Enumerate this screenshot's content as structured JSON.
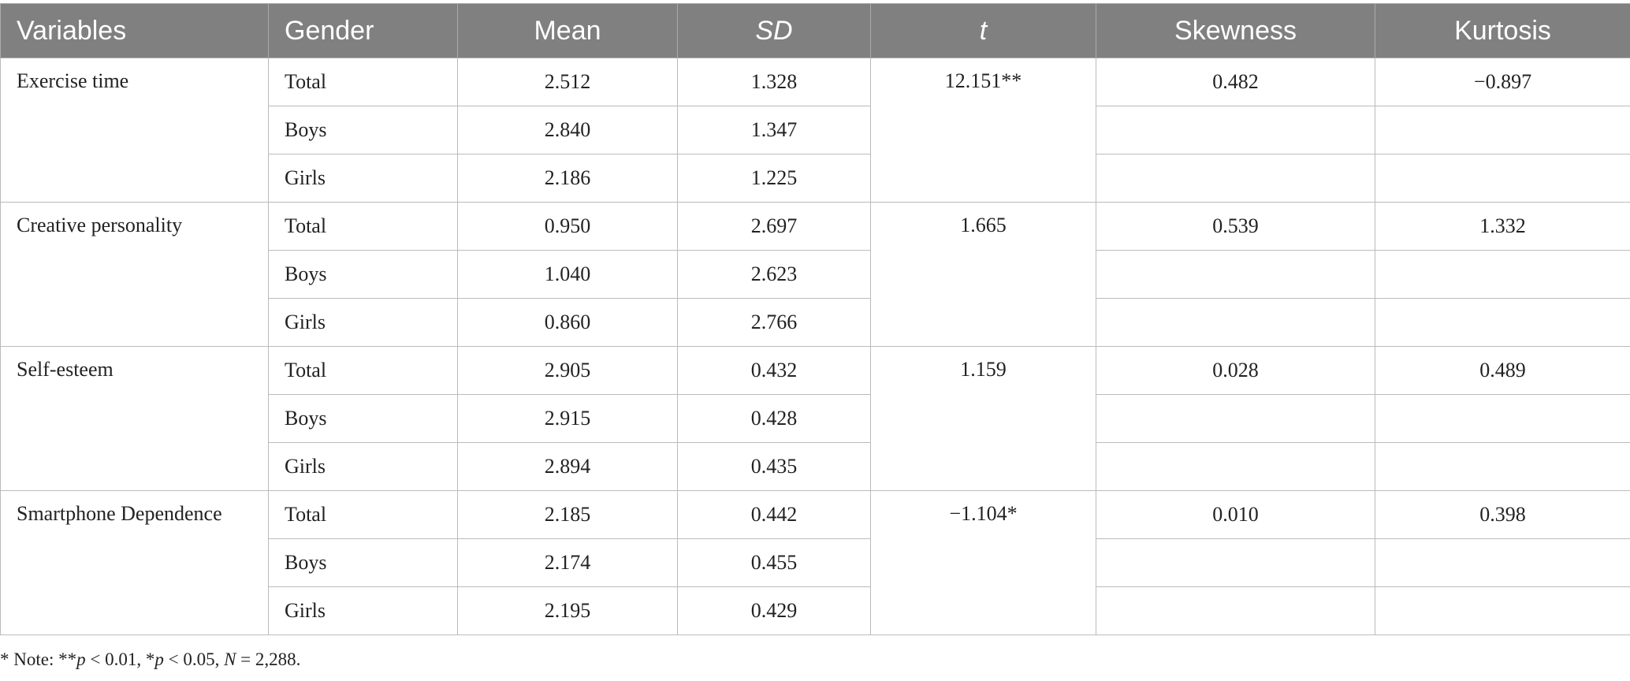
{
  "table": {
    "header": [
      "Variables",
      "Gender",
      "Mean",
      "SD",
      "t",
      "Skewness",
      "Kurtosis"
    ],
    "groups": [
      {
        "variable": "Exercise time",
        "t": "12.151**",
        "skewness": "0.482",
        "kurtosis": "−0.897",
        "rows": [
          [
            "Total",
            "2.512",
            "1.328"
          ],
          [
            "Boys",
            "2.840",
            "1.347"
          ],
          [
            "Girls",
            "2.186",
            "1.225"
          ]
        ]
      },
      {
        "variable": "Creative personality",
        "t": "1.665",
        "skewness": "0.539",
        "kurtosis": "1.332",
        "rows": [
          [
            "Total",
            "0.950",
            "2.697"
          ],
          [
            "Boys",
            "1.040",
            "2.623"
          ],
          [
            "Girls",
            "0.860",
            "2.766"
          ]
        ]
      },
      {
        "variable": "Self-esteem",
        "t": "1.159",
        "skewness": "0.028",
        "kurtosis": "0.489",
        "rows": [
          [
            "Total",
            "2.905",
            "0.432"
          ],
          [
            "Boys",
            "2.915",
            "0.428"
          ],
          [
            "Girls",
            "2.894",
            "0.435"
          ]
        ]
      },
      {
        "variable": "Smartphone Dependence",
        "t": "−1.104*",
        "skewness": "0.010",
        "kurtosis": "0.398",
        "rows": [
          [
            "Total",
            "2.185",
            "0.442"
          ],
          [
            "Boys",
            "2.174",
            "0.455"
          ],
          [
            "Girls",
            "2.195",
            "0.429"
          ]
        ]
      }
    ]
  },
  "note": [
    "* Note: **",
    "p",
    " < 0.01, *",
    "p",
    " < 0.05, ",
    "N",
    " = 2,288."
  ]
}
